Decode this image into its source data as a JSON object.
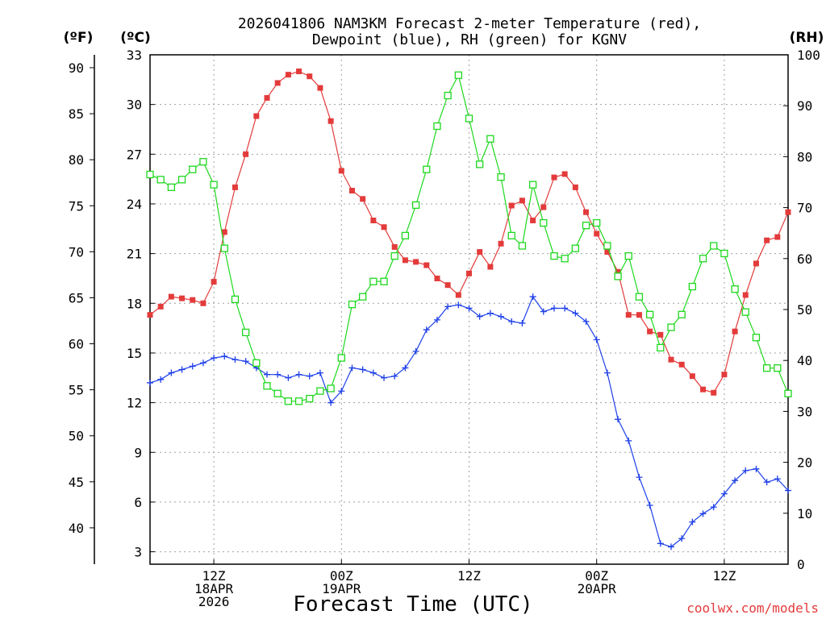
{
  "chart_data": {
    "type": "line",
    "title": "2026041806 NAM3KM Forecast 2-meter Temperature (red),",
    "title_line2": "Dewpoint (blue), RH (green) for KGNV",
    "xlabel": "Forecast Time (UTC)",
    "credit": "coolwx.com/models",
    "units": {
      "f": "(ºF)",
      "c": "(ºC)",
      "rh": "(RH)"
    },
    "x_range_hours": [
      6,
      66
    ],
    "y_celsius_range": [
      2.25,
      33.0
    ],
    "y_rh_range": [
      0,
      100
    ],
    "y_ticks_c": [
      3,
      6,
      9,
      12,
      15,
      18,
      21,
      24,
      27,
      30,
      33
    ],
    "y_ticks_f": [
      40,
      45,
      50,
      55,
      60,
      65,
      70,
      75,
      80,
      85,
      90
    ],
    "y_ticks_rh": [
      0,
      10,
      20,
      30,
      40,
      50,
      60,
      70,
      80,
      90,
      100
    ],
    "x_ticks": [
      {
        "hour": 12,
        "lines": [
          "12Z",
          "18APR",
          "2026"
        ]
      },
      {
        "hour": 24,
        "lines": [
          "00Z",
          "19APR"
        ]
      },
      {
        "hour": 36,
        "lines": [
          "12Z"
        ]
      },
      {
        "hour": 48,
        "lines": [
          "00Z",
          "20APR"
        ]
      },
      {
        "hour": 60,
        "lines": [
          "12Z"
        ]
      }
    ],
    "colors": {
      "temperature": "#e33b3b",
      "dewpoint": "#1d3fe8",
      "rh": "#1ed81e"
    },
    "series": [
      {
        "name": "Temperature (°C)",
        "axis": "celsius",
        "values": [
          17.3,
          17.8,
          18.4,
          18.3,
          18.2,
          18.0,
          19.3,
          22.3,
          25.0,
          27.0,
          29.3,
          30.4,
          31.3,
          31.8,
          32.0,
          31.7,
          31.0,
          29.0,
          26.0,
          24.8,
          24.3,
          23.0,
          22.6,
          21.4,
          20.6,
          20.5,
          20.3,
          19.5,
          19.1,
          18.5,
          19.8,
          21.1,
          20.2,
          21.6,
          23.9,
          24.2,
          23.0,
          23.8,
          25.6,
          25.8,
          25.0,
          23.5,
          22.2,
          21.1,
          19.9,
          17.3,
          17.3,
          16.3,
          16.1,
          14.6,
          14.3,
          13.6,
          12.8,
          12.6,
          13.7,
          16.3,
          18.5,
          20.4,
          21.8,
          22.0,
          23.5
        ]
      },
      {
        "name": "Dewpoint (°C)",
        "axis": "celsius",
        "values": [
          13.2,
          13.4,
          13.8,
          14.0,
          14.2,
          14.4,
          14.7,
          14.8,
          14.6,
          14.5,
          14.1,
          13.7,
          13.7,
          13.5,
          13.7,
          13.6,
          13.8,
          12.0,
          12.7,
          14.1,
          14.0,
          13.8,
          13.5,
          13.6,
          14.1,
          15.1,
          16.4,
          17.0,
          17.8,
          17.9,
          17.7,
          17.2,
          17.4,
          17.2,
          16.9,
          16.8,
          18.4,
          17.5,
          17.7,
          17.7,
          17.4,
          16.9,
          15.8,
          13.8,
          11.0,
          9.7,
          7.5,
          5.8,
          3.5,
          3.3,
          3.8,
          4.8,
          5.3,
          5.7,
          6.5,
          7.3,
          7.9,
          8.0,
          7.2,
          7.4,
          6.7
        ]
      },
      {
        "name": "Relative Humidity (%)",
        "axis": "rh",
        "values": [
          76.5,
          75.5,
          74.0,
          75.5,
          77.5,
          79.0,
          74.5,
          62.0,
          52.0,
          45.5,
          39.5,
          35.0,
          33.5,
          32.0,
          32.0,
          32.5,
          34.0,
          34.5,
          40.5,
          51.0,
          52.5,
          55.5,
          55.5,
          60.5,
          64.5,
          70.5,
          77.5,
          86.0,
          92.0,
          96.0,
          87.5,
          78.5,
          83.5,
          76.0,
          64.5,
          62.5,
          74.5,
          67.0,
          60.5,
          60.0,
          62.0,
          66.5,
          67.0,
          62.5,
          56.5,
          60.5,
          52.5,
          49.0,
          42.5,
          46.5,
          49.0,
          54.5,
          60.0,
          62.5,
          61.0,
          54.0,
          49.5,
          44.5,
          38.5,
          38.5,
          33.5
        ]
      }
    ]
  }
}
